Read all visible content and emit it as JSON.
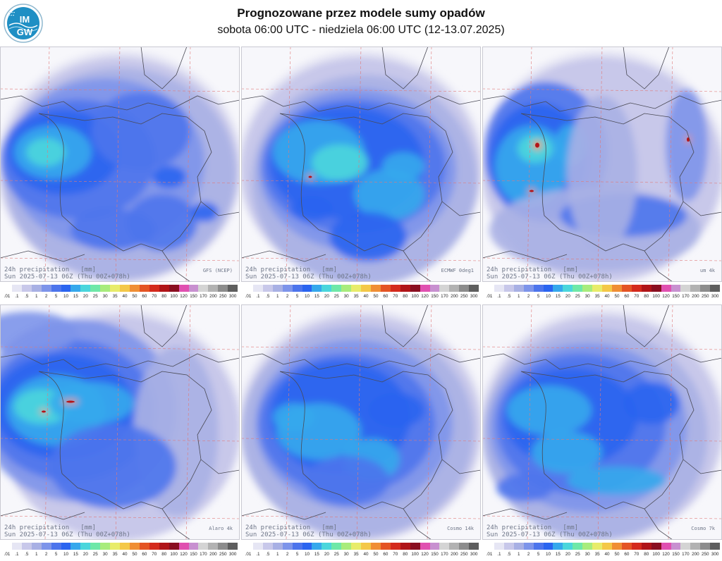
{
  "header": {
    "logo_text": "IMGW",
    "title": "Prognozowane przez modele sumy opadów",
    "subtitle": "sobota 06:00 UTC - niedziela 06:00 UTC (12-13.07.2025)"
  },
  "panels": [
    {
      "label_line1": "24h precipitation   [mm]",
      "model": "GFS (NCEP)",
      "label_line2": "Sun 2025-07-13 06Z (Thu 00Z+078h)"
    },
    {
      "label_line1": "24h precipitation   [mm]",
      "model": "ECMWF 0deg1",
      "label_line2": "Sun 2025-07-13 06Z (Thu 00Z+078h)"
    },
    {
      "label_line1": "24h precipitation   [mm]",
      "model": "um 4k",
      "label_line2": "Sun 2025-07-13 06Z (Thu 00Z+078h)"
    },
    {
      "label_line1": "24h precipitation   [mm]",
      "model": "Alaro 4k",
      "label_line2": "Sun 2025-07-13 06Z (Thu 00Z+078h)"
    },
    {
      "label_line1": "24h precipitation   [mm]",
      "model": "Cosmo 14k",
      "label_line2": "Sun 2025-07-13 06Z (Thu 00Z+078h)"
    },
    {
      "label_line1": "24h precipitation   [mm]",
      "model": "Cosmo 7k",
      "label_line2": "Sun 2025-07-13 06Z (Thu 00Z+078h)"
    }
  ],
  "colorbar": {
    "ticks": [
      ".01",
      ".1",
      ".5",
      "1",
      "2",
      "5",
      "10",
      "15",
      "20",
      "25",
      "30",
      "35",
      "40",
      "50",
      "60",
      "70",
      "80",
      "100",
      "120",
      "150",
      "170",
      "200",
      "250",
      "300"
    ],
    "colors": [
      "#ffffff",
      "#e6e6f4",
      "#c8c8ea",
      "#a8b0e4",
      "#7d94ea",
      "#4c74ec",
      "#2a64f0",
      "#35a8ec",
      "#4ad6dc",
      "#6ee8a8",
      "#a8ec7c",
      "#e8ec6a",
      "#f4c848",
      "#f08e34",
      "#e45424",
      "#d42a1c",
      "#b01418",
      "#8a0e20",
      "#e050b0",
      "#c890d0",
      "#d4d4d4",
      "#b2b2b2",
      "#8c8c8c",
      "#5e5e5e"
    ]
  }
}
